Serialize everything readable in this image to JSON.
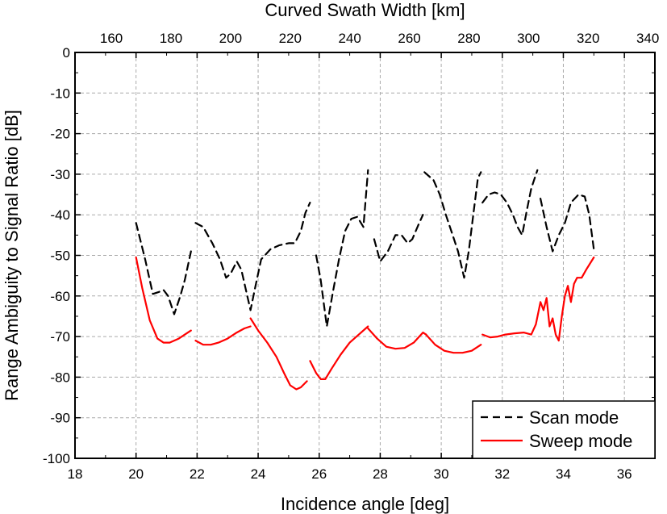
{
  "chart_data": {
    "type": "line",
    "xlabel": "Incidence angle [deg]",
    "ylabel": "Range Ambiguity to Signal Ratio [dB]",
    "x2label": "Curved Swath Width [km]",
    "xlim": [
      18,
      37
    ],
    "ylim": [
      -100,
      0
    ],
    "x2lim": [
      147.8,
      342.4
    ],
    "xticks": [
      "18",
      "20",
      "22",
      "24",
      "26",
      "28",
      "30",
      "32",
      "34",
      "36"
    ],
    "yticks": [
      "0",
      "-10",
      "-20",
      "-30",
      "-40",
      "-50",
      "-60",
      "-70",
      "-80",
      "-90",
      "-100"
    ],
    "x2ticks": [
      "160",
      "180",
      "200",
      "220",
      "240",
      "260",
      "280",
      "300",
      "320",
      "340"
    ],
    "grid": true,
    "legend_position": "bottom-right",
    "series": [
      {
        "name": "Scan mode",
        "color": "#000000",
        "style": "dashed",
        "segments": [
          [
            [
              20.0,
              -42
            ],
            [
              20.3,
              -51
            ],
            [
              20.55,
              -59.5
            ],
            [
              20.75,
              -59
            ],
            [
              20.9,
              -58.5
            ],
            [
              21.05,
              -60
            ],
            [
              21.25,
              -64.5
            ],
            [
              21.45,
              -60
            ],
            [
              21.6,
              -56
            ],
            [
              21.8,
              -49
            ]
          ],
          [
            [
              21.95,
              -42
            ],
            [
              22.2,
              -43
            ],
            [
              22.5,
              -47
            ],
            [
              22.75,
              -51
            ],
            [
              22.95,
              -55.5
            ],
            [
              23.1,
              -54.5
            ],
            [
              23.3,
              -51.5
            ],
            [
              23.45,
              -53.5
            ],
            [
              23.6,
              -58.5
            ],
            [
              23.75,
              -63.5
            ],
            [
              23.9,
              -58
            ],
            [
              24.1,
              -51
            ],
            [
              24.4,
              -48.5
            ],
            [
              24.7,
              -47.5
            ],
            [
              25.0,
              -47
            ],
            [
              25.2,
              -47
            ],
            [
              25.4,
              -44
            ],
            [
              25.55,
              -39.5
            ],
            [
              25.7,
              -37
            ]
          ],
          [
            [
              25.9,
              -50
            ],
            [
              26.05,
              -56
            ],
            [
              26.25,
              -67.5
            ],
            [
              26.45,
              -59
            ],
            [
              26.65,
              -51
            ],
            [
              26.85,
              -44
            ],
            [
              27.05,
              -41
            ],
            [
              27.25,
              -40.5
            ],
            [
              27.45,
              -43
            ],
            [
              27.6,
              -29
            ]
          ],
          [
            [
              27.8,
              -46
            ],
            [
              28.0,
              -51.5
            ],
            [
              28.25,
              -49
            ],
            [
              28.5,
              -45
            ],
            [
              28.7,
              -45
            ],
            [
              28.9,
              -47
            ],
            [
              29.05,
              -46
            ],
            [
              29.25,
              -42.5
            ],
            [
              29.4,
              -40
            ]
          ],
          [
            [
              29.45,
              -29.5
            ],
            [
              29.75,
              -31.5
            ],
            [
              29.95,
              -35
            ],
            [
              30.15,
              -40
            ],
            [
              30.35,
              -44.5
            ],
            [
              30.55,
              -49
            ],
            [
              30.75,
              -55.5
            ],
            [
              30.9,
              -49
            ],
            [
              31.05,
              -40
            ],
            [
              31.2,
              -31
            ],
            [
              31.3,
              -29.5
            ]
          ],
          [
            [
              31.35,
              -37
            ],
            [
              31.55,
              -35
            ],
            [
              31.75,
              -34.5
            ],
            [
              31.95,
              -35
            ],
            [
              32.15,
              -37
            ],
            [
              32.35,
              -40
            ],
            [
              32.5,
              -43
            ],
            [
              32.65,
              -45
            ],
            [
              32.8,
              -39
            ],
            [
              32.95,
              -33.5
            ],
            [
              33.15,
              -29
            ]
          ],
          [
            [
              33.25,
              -36
            ],
            [
              33.45,
              -43
            ],
            [
              33.65,
              -49
            ],
            [
              33.85,
              -45
            ],
            [
              34.05,
              -42
            ],
            [
              34.25,
              -37
            ],
            [
              34.5,
              -35
            ],
            [
              34.7,
              -35.5
            ],
            [
              34.85,
              -40
            ],
            [
              35.0,
              -48.5
            ]
          ]
        ]
      },
      {
        "name": "Sweep mode",
        "color": "#ff0000",
        "style": "solid",
        "segments": [
          [
            [
              20.0,
              -50.5
            ],
            [
              20.2,
              -58
            ],
            [
              20.45,
              -66
            ],
            [
              20.7,
              -70.5
            ],
            [
              20.9,
              -71.5
            ],
            [
              21.1,
              -71.5
            ],
            [
              21.4,
              -70.5
            ],
            [
              21.6,
              -69.5
            ],
            [
              21.8,
              -68.5
            ]
          ],
          [
            [
              21.95,
              -71
            ],
            [
              22.2,
              -72
            ],
            [
              22.45,
              -72
            ],
            [
              22.7,
              -71.5
            ],
            [
              23.0,
              -70.5
            ],
            [
              23.3,
              -69
            ],
            [
              23.55,
              -68
            ],
            [
              23.75,
              -67.5
            ]
          ],
          [
            [
              23.75,
              -65.5
            ],
            [
              24.0,
              -68.5
            ],
            [
              24.3,
              -71.5
            ],
            [
              24.6,
              -75
            ],
            [
              24.85,
              -79
            ],
            [
              25.05,
              -82
            ],
            [
              25.25,
              -83
            ],
            [
              25.4,
              -82.5
            ],
            [
              25.6,
              -81
            ]
          ],
          [
            [
              25.7,
              -76
            ],
            [
              25.9,
              -79
            ],
            [
              26.05,
              -80.5
            ],
            [
              26.2,
              -80.5
            ],
            [
              26.4,
              -78
            ],
            [
              26.7,
              -74.5
            ],
            [
              27.0,
              -71.5
            ],
            [
              27.3,
              -69.5
            ],
            [
              27.6,
              -67.5
            ]
          ],
          [
            [
              27.6,
              -68
            ],
            [
              27.9,
              -70.5
            ],
            [
              28.2,
              -72.5
            ],
            [
              28.5,
              -73
            ],
            [
              28.8,
              -72.8
            ],
            [
              29.1,
              -71.5
            ],
            [
              29.4,
              -69
            ],
            [
              29.5,
              -69.5
            ]
          ],
          [
            [
              29.5,
              -69.5
            ],
            [
              29.8,
              -72
            ],
            [
              30.1,
              -73.5
            ],
            [
              30.4,
              -74
            ],
            [
              30.7,
              -74
            ],
            [
              31.0,
              -73.5
            ],
            [
              31.3,
              -72
            ]
          ],
          [
            [
              31.35,
              -69.5
            ],
            [
              31.6,
              -70.2
            ],
            [
              31.85,
              -70
            ],
            [
              32.1,
              -69.5
            ],
            [
              32.4,
              -69.2
            ],
            [
              32.7,
              -69
            ],
            [
              32.95,
              -69.5
            ],
            [
              33.1,
              -67
            ],
            [
              33.25,
              -61.5
            ],
            [
              33.35,
              -63.5
            ],
            [
              33.45,
              -60.5
            ],
            [
              33.55,
              -67.5
            ],
            [
              33.65,
              -65.5
            ],
            [
              33.75,
              -69.5
            ],
            [
              33.85,
              -71
            ],
            [
              33.95,
              -65
            ],
            [
              34.05,
              -60
            ],
            [
              34.15,
              -57.5
            ],
            [
              34.25,
              -61.5
            ],
            [
              34.35,
              -57
            ],
            [
              34.45,
              -55.5
            ],
            [
              34.6,
              -55.5
            ],
            [
              34.75,
              -53.5
            ],
            [
              35.0,
              -50.5
            ]
          ]
        ]
      }
    ]
  }
}
